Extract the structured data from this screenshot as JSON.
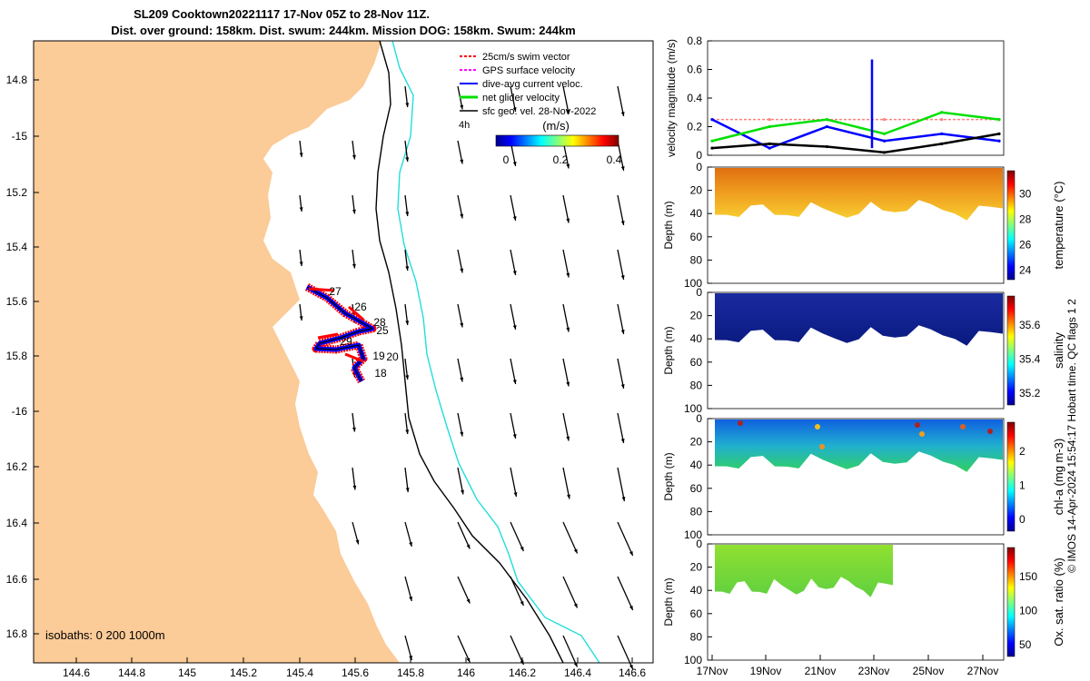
{
  "header": {
    "title_line1": "SL209 Cooktown20221117 17-Nov 05Z to 28-Nov 11Z.",
    "title_line2": "Dist. over ground: 158km. Dist. swum: 244km. Mission DOG: 158km. Swum: 244km"
  },
  "map": {
    "legend": [
      {
        "label": "25cm/s swim vector",
        "color": "#ff0000"
      },
      {
        "label": "GPS surface velocity",
        "color": "#ff00ff"
      },
      {
        "label": "dive-avg current veloc.",
        "color": "#0000ff"
      },
      {
        "label": "net glider velocity",
        "color": "#00e000"
      },
      {
        "label": "sfc geo. vel. 28-Nov-2022",
        "color": "#000000"
      }
    ],
    "scale_label": "4h",
    "colorbar_unit": "(m/s)",
    "colorbar_ticks": [
      "0",
      "0.2",
      "0.4"
    ],
    "isobaths_label": "isobaths: 0   200  1000m",
    "lat_ticks": [
      "14.8",
      "-15",
      "15.2",
      "15.4",
      "15.6",
      "15.8",
      "-16",
      "16.2",
      "16.4",
      "16.6",
      "16.8"
    ],
    "lon_ticks": [
      "144.6",
      "144.8",
      "145",
      "145.2",
      "145.4",
      "145.6",
      "145.8",
      "146",
      "146.2",
      "146.4",
      "146.6"
    ],
    "day_labels": [
      "27",
      "26",
      "28",
      "25",
      "29",
      "19",
      "20",
      "18"
    ],
    "land_color": "#fbcb98",
    "isobath_200_color": "#000000",
    "isobath_1000_color": "#22dddd"
  },
  "right_panels": {
    "velocity_ylabel": "velocity magnitude (m/s)",
    "velocity_yticks": [
      "0",
      "0.2",
      "0.4",
      "0.6",
      "0.8"
    ],
    "depth_label": "Depth (m)",
    "depth_ticks": [
      "0",
      "20",
      "40",
      "60",
      "80",
      "100"
    ],
    "time_ticks": [
      "17Nov",
      "19Nov",
      "21Nov",
      "23Nov",
      "25Nov",
      "27Nov"
    ],
    "temperature": {
      "label": "temperature (°C)",
      "ticks": [
        "24",
        "26",
        "28",
        "30"
      ]
    },
    "salinity": {
      "label": "salinity",
      "ticks": [
        "35.2",
        "35.4",
        "35.6"
      ]
    },
    "chla": {
      "label": "chl-a (mg m-3)",
      "ticks": [
        "0",
        "1",
        "2"
      ]
    },
    "oxygen": {
      "label": "Ox. sat. ratio (%)",
      "ticks": [
        "50",
        "100",
        "150"
      ]
    },
    "footer": "© IMOS 14-Apr-2024 15:54:17 Hobart time. QC flags 1  2"
  },
  "chart_data": [
    {
      "type": "line",
      "title": "",
      "xlabel": "",
      "ylabel": "velocity magnitude (m/s)",
      "ylim": [
        0,
        0.8
      ],
      "x": [
        "17Nov",
        "19Nov",
        "21Nov",
        "23Nov",
        "25Nov",
        "27Nov"
      ],
      "series": [
        {
          "name": "25cm/s swim vector",
          "color": "#ff8080",
          "values": [
            0.25,
            0.25,
            0.25,
            0.25,
            0.25,
            0.25
          ]
        },
        {
          "name": "dive-avg current veloc.",
          "color": "#0000ff",
          "values": [
            0.25,
            0.05,
            0.2,
            0.1,
            0.15,
            0.1
          ]
        },
        {
          "name": "net glider velocity",
          "color": "#00e000",
          "values": [
            0.1,
            0.2,
            0.25,
            0.15,
            0.3,
            0.25
          ]
        },
        {
          "name": "sfc geo. vel. 28-Nov-2022",
          "color": "#000000",
          "values": [
            0.05,
            0.08,
            0.06,
            0.02,
            0.08,
            0.15
          ]
        }
      ]
    }
  ]
}
